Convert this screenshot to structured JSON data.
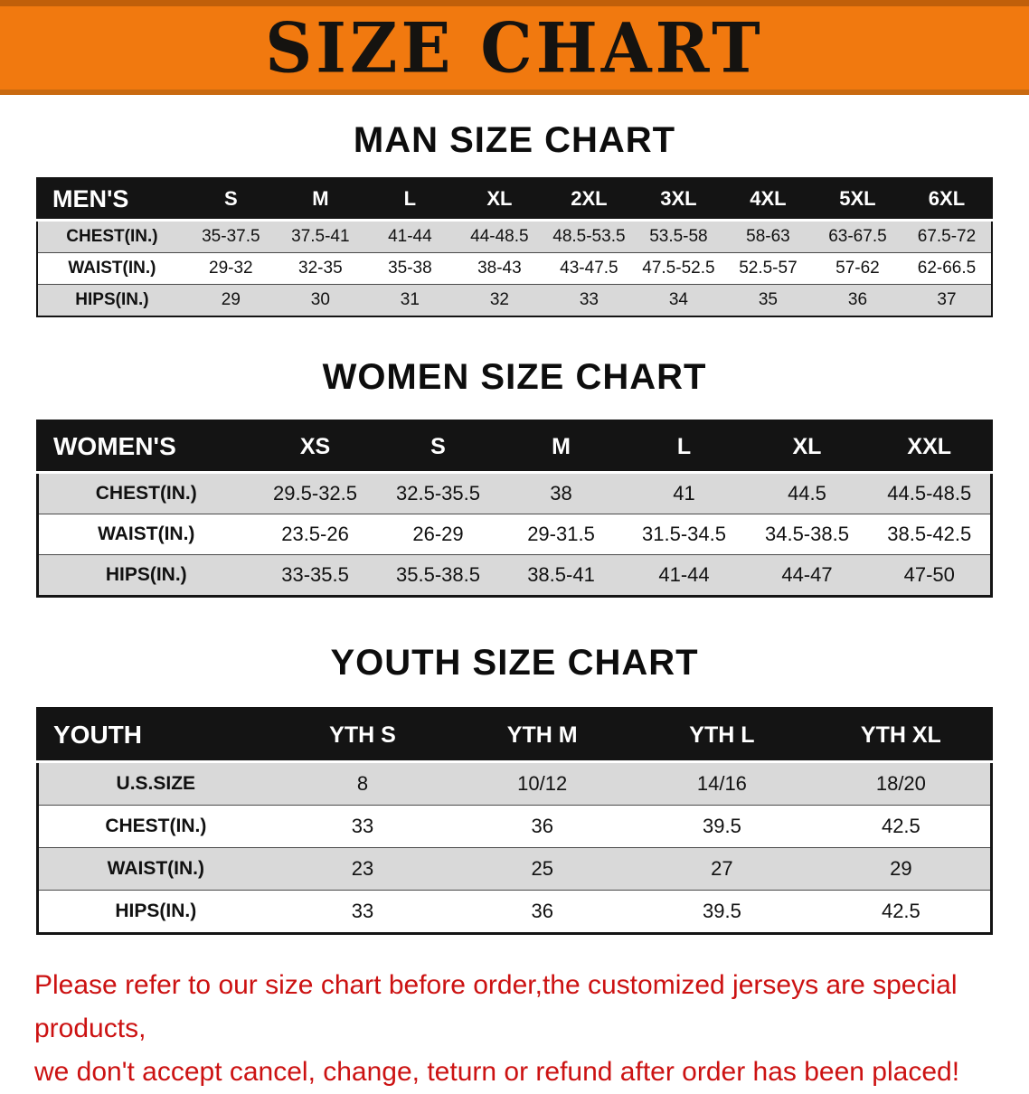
{
  "banner": {
    "title": "SIZE CHART"
  },
  "colors": {
    "banner_bg": "#f1790f",
    "banner_edge": "#c05f0a",
    "table_header_bg": "#141414",
    "row_alt_gray": "#d9d9d9",
    "disclaimer_red": "#cc1212"
  },
  "sections": [
    {
      "title": "MAN SIZE CHART",
      "header": [
        "MEN'S",
        "S",
        "M",
        "L",
        "XL",
        "2XL",
        "3XL",
        "4XL",
        "5XL",
        "6XL"
      ],
      "rows": [
        [
          "CHEST(IN.)",
          "35-37.5",
          "37.5-41",
          "41-44",
          "44-48.5",
          "48.5-53.5",
          "53.5-58",
          "58-63",
          "63-67.5",
          "67.5-72"
        ],
        [
          "WAIST(IN.)",
          "29-32",
          "32-35",
          "35-38",
          "38-43",
          "43-47.5",
          "47.5-52.5",
          "52.5-57",
          "57-62",
          "62-66.5"
        ],
        [
          "HIPS(IN.)",
          "29",
          "30",
          "31",
          "32",
          "33",
          "34",
          "35",
          "36",
          "37"
        ]
      ]
    },
    {
      "title": "WOMEN SIZE CHART",
      "header": [
        "WOMEN'S",
        "XS",
        "S",
        "M",
        "L",
        "XL",
        "XXL"
      ],
      "rows": [
        [
          "CHEST(IN.)",
          "29.5-32.5",
          "32.5-35.5",
          "38",
          "41",
          "44.5",
          "44.5-48.5"
        ],
        [
          "WAIST(IN.)",
          "23.5-26",
          "26-29",
          "29-31.5",
          "31.5-34.5",
          "34.5-38.5",
          "38.5-42.5"
        ],
        [
          "HIPS(IN.)",
          "33-35.5",
          "35.5-38.5",
          "38.5-41",
          "41-44",
          "44-47",
          "47-50"
        ]
      ]
    },
    {
      "title": "YOUTH SIZE CHART",
      "header": [
        "YOUTH",
        "YTH S",
        "YTH M",
        "YTH L",
        "YTH XL"
      ],
      "rows": [
        [
          "U.S.SIZE",
          "8",
          "10/12",
          "14/16",
          "18/20"
        ],
        [
          "CHEST(IN.)",
          "33",
          "36",
          "39.5",
          "42.5"
        ],
        [
          "WAIST(IN.)",
          "23",
          "25",
          "27",
          "29"
        ],
        [
          "HIPS(IN.)",
          "33",
          "36",
          "39.5",
          "42.5"
        ]
      ]
    }
  ],
  "footer": {
    "line1": "Please refer to our size chart before order,the customized jerseys are special products,",
    "line2": "we don't accept cancel, change, teturn or refund after order has been placed!"
  }
}
